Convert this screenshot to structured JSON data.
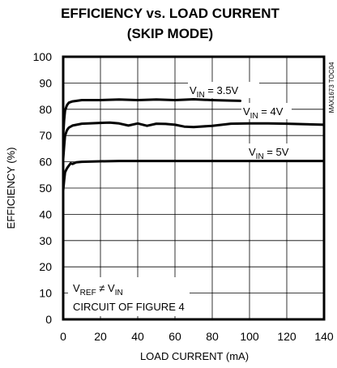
{
  "chart_data": {
    "type": "line",
    "title": "EFFICIENCY vs. LOAD CURRENT",
    "subtitle": "(SKIP MODE)",
    "xlabel": "LOAD CURRENT (mA)",
    "ylabel": "EFFICIENCY (%)",
    "xlim": [
      0,
      140
    ],
    "ylim": [
      0,
      100
    ],
    "x_ticks": [
      "0",
      "20",
      "40",
      "60",
      "80",
      "100",
      "120",
      "140"
    ],
    "y_ticks": [
      "0",
      "10",
      "20",
      "30",
      "40",
      "50",
      "60",
      "70",
      "80",
      "90",
      "100"
    ],
    "grid": true,
    "side_label": "MAX1673 TOC04",
    "series": [
      {
        "name": "V_IN = 3.5V",
        "label_main": "V",
        "label_sub": "IN",
        "label_rest": " = 3.5V",
        "x": [
          0,
          0.5,
          1,
          2,
          3,
          5,
          10,
          20,
          30,
          40,
          50,
          60,
          70,
          80,
          90,
          95
        ],
        "y": [
          70,
          76,
          79.5,
          81.5,
          82.5,
          83,
          83.5,
          83.5,
          83.7,
          83.5,
          83.7,
          83.5,
          83.8,
          83.5,
          83.3,
          83.2
        ]
      },
      {
        "name": "V_IN = 4V",
        "label_main": "V",
        "label_sub": "IN",
        "label_rest": " = 4V",
        "x": [
          0,
          0.5,
          1,
          2,
          3,
          5,
          10,
          20,
          25,
          30,
          35,
          40,
          45,
          50,
          55,
          60,
          65,
          70,
          80,
          90,
          100,
          110,
          120,
          130,
          140
        ],
        "y": [
          61,
          66,
          70,
          72,
          73,
          73.8,
          74.5,
          74.8,
          74.9,
          74.6,
          73.8,
          74.6,
          73.7,
          74.5,
          74.4,
          74.1,
          73.4,
          73.2,
          73.7,
          74.5,
          74.6,
          74.6,
          74.5,
          74.3,
          74.1
        ]
      },
      {
        "name": "V_IN = 5V",
        "label_main": "V",
        "label_sub": "IN",
        "label_rest": " = 5V",
        "x": [
          0,
          0.5,
          1,
          2,
          3,
          4,
          5,
          7,
          10,
          20,
          30,
          40,
          60,
          80,
          100,
          120,
          140
        ],
        "y": [
          49,
          53,
          56,
          57.5,
          58.5,
          59.4,
          59.2,
          59.8,
          60,
          60.2,
          60.3,
          60.3,
          60.3,
          60.3,
          60.3,
          60.3,
          60.3
        ]
      }
    ],
    "annotation": {
      "line1_main": "V",
      "line1_sub": "REF",
      "line1_mid": " ≠ V",
      "line1_sub2": "IN",
      "line2": "CIRCUIT OF FIGURE 4"
    }
  }
}
